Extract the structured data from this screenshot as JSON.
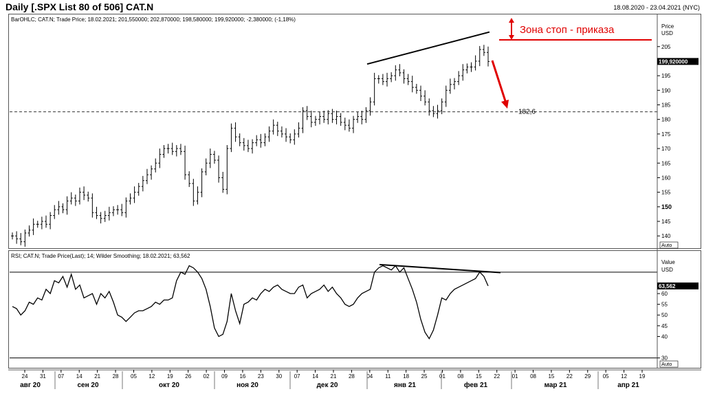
{
  "header": {
    "title": "Daily [.SPX List 80 of 506] CAT.N",
    "date_range": "18.08.2020 - 23.04.2021 (NYC)"
  },
  "price_pane": {
    "legend": "BarOHLC; CAT.N; Trade Price; 18.02.2021; 201,550000; 202,870000; 198,580000; 199,920000; -2,380000; (-1,18%)",
    "axis_label_1": "Price",
    "axis_label_2": "USD",
    "auto_label": "Auto",
    "last_price_tag": "199,920000",
    "ticks": [
      140,
      145,
      150,
      155,
      160,
      165,
      170,
      175,
      180,
      185,
      190,
      195,
      200,
      205
    ],
    "ylim": [
      136.5,
      212.5
    ],
    "support_level": 182.6,
    "support_label": "182,6",
    "stop_zone_label": "Зона стоп - приказа"
  },
  "rsi_pane": {
    "legend": "RSI; CAT.N; Trade Price(Last); 14; Wilder Smoothing; 18.02.2021; 63,562",
    "axis_label_1": "Value",
    "axis_label_2": "USD",
    "auto_label": "Auto",
    "last_value_tag": "63,562",
    "ticks": [
      30,
      40,
      45,
      50,
      55,
      60
    ],
    "ylim": [
      27,
      77
    ],
    "upper_line": 70,
    "lower_line": 30
  },
  "x_axis": {
    "day_ticks": [
      "24",
      "31",
      "07",
      "14",
      "21",
      "28",
      "05",
      "12",
      "19",
      "26",
      "02",
      "09",
      "16",
      "23",
      "30",
      "07",
      "14",
      "21",
      "28",
      "04",
      "11",
      "18",
      "25",
      "01",
      "08",
      "15",
      "22",
      "01",
      "08",
      "15",
      "22",
      "29",
      "05",
      "12",
      "19"
    ],
    "month_labels": [
      "авг 20",
      "сен 20",
      "окт 20",
      "ноя 20",
      "дек 20",
      "янв 21",
      "фев 21",
      "мар 21",
      "апр 21"
    ]
  },
  "chart_data": {
    "type": "line",
    "series": [
      {
        "name": "BarOHLC",
        "description_type": "ohlc-close",
        "values": [
          140,
          139,
          138,
          141,
          142,
          144,
          144,
          145,
          144,
          147,
          149,
          150,
          149,
          152,
          153,
          152,
          155,
          154,
          153,
          148,
          147,
          146,
          147,
          148,
          149,
          149,
          148,
          152,
          153,
          155,
          157,
          159,
          161,
          163,
          165,
          168,
          170,
          170,
          169,
          170,
          169,
          161,
          158,
          152,
          155,
          162,
          165,
          168,
          166,
          160,
          156,
          170,
          177,
          174,
          172,
          171,
          170,
          172,
          173,
          172,
          174,
          176,
          178,
          176,
          175,
          174,
          173,
          175,
          177,
          183,
          181,
          179,
          180,
          181,
          180,
          182,
          180,
          181,
          179,
          178,
          177,
          180,
          181,
          180,
          183,
          186,
          194,
          194,
          193,
          194,
          195,
          197,
          196,
          194,
          193,
          191,
          190,
          188,
          186,
          183,
          182,
          183,
          186,
          190,
          192,
          193,
          195,
          197,
          198,
          198,
          200,
          204,
          203,
          199.9
        ],
        "annotations": {
          "last": "199,920000"
        }
      },
      {
        "name": "RSI",
        "description_type": "rsi-14",
        "values": [
          54,
          53,
          50,
          52,
          56,
          55,
          58,
          57,
          62,
          60,
          66,
          65,
          68,
          63,
          69,
          62,
          64,
          58,
          59,
          60,
          55,
          60,
          58,
          61,
          56,
          50,
          49,
          47,
          49,
          51,
          52,
          52,
          53,
          54,
          56,
          55,
          57,
          57,
          58,
          66,
          70,
          69,
          73,
          72,
          70,
          67,
          62,
          54,
          44,
          40,
          41,
          47,
          60,
          52,
          46,
          55,
          56,
          58,
          57,
          60,
          62,
          61,
          63,
          64,
          62,
          61,
          60,
          60,
          63,
          64,
          58,
          60,
          61,
          62,
          64,
          61,
          63,
          60,
          58,
          55,
          54,
          55,
          58,
          60,
          61,
          62,
          70,
          72,
          73,
          72,
          71,
          73,
          70,
          72,
          67,
          62,
          56,
          48,
          42,
          39,
          43,
          50,
          58,
          57,
          60,
          62,
          63,
          64,
          65,
          66,
          67,
          70,
          68,
          63.562
        ],
        "annotations": {
          "last": "63,562"
        }
      }
    ],
    "ylim_price": [
      136.5,
      212.5
    ],
    "ylim_rsi": [
      27,
      77
    ],
    "grid": false,
    "legend_position": "top-left"
  },
  "colors": {
    "text": "#000000",
    "annotation_red": "#e00000",
    "price_tag_bg": "#000000",
    "price_tag_fg": "#ffffff",
    "trend_line": "#000000",
    "dashed_line": "#333333"
  }
}
